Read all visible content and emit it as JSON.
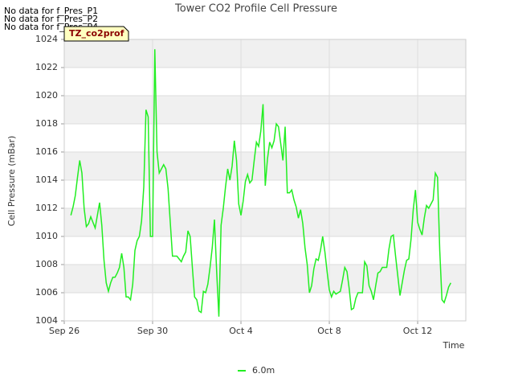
{
  "chart_data": {
    "type": "line",
    "title": "Tower CO2 Profile Cell Pressure",
    "notes": [
      "No data for f_Pres_P1",
      "No data for f_Pres_P2",
      "No data for f_Pres_P4"
    ],
    "tag": "TZ_co2prof",
    "xlabel": "Time",
    "ylabel": "Cell Pressure (mBar)",
    "xlim": [
      0,
      18.18
    ],
    "ylim": [
      1004,
      1024
    ],
    "xticks": [
      {
        "value": 0,
        "label": "Sep 26"
      },
      {
        "value": 4,
        "label": "Sep 30"
      },
      {
        "value": 8,
        "label": "Oct 4"
      },
      {
        "value": 12,
        "label": "Oct 8"
      },
      {
        "value": 16,
        "label": "Oct 12"
      }
    ],
    "yticks": [
      1004,
      1006,
      1008,
      1010,
      1012,
      1014,
      1016,
      1018,
      1020,
      1022,
      1024
    ],
    "grid": true,
    "legend": "bottom",
    "x": [
      0.3,
      0.4,
      0.5,
      0.6,
      0.7,
      0.8,
      0.9,
      1.0,
      1.1,
      1.2,
      1.3,
      1.4,
      1.5,
      1.6,
      1.7,
      1.8,
      1.9,
      2.0,
      2.1,
      2.2,
      2.3,
      2.4,
      2.5,
      2.6,
      2.7,
      2.8,
      2.9,
      3.0,
      3.1,
      3.2,
      3.3,
      3.4,
      3.5,
      3.6,
      3.7,
      3.8,
      3.9,
      4.0,
      4.1,
      4.2,
      4.3,
      4.4,
      4.5,
      4.6,
      4.7,
      4.8,
      4.9,
      5.0,
      5.1,
      5.2,
      5.3,
      5.4,
      5.5,
      5.6,
      5.7,
      5.8,
      5.9,
      6.0,
      6.1,
      6.2,
      6.3,
      6.4,
      6.5,
      6.6,
      6.7,
      6.8,
      6.9,
      7.0,
      7.1,
      7.2,
      7.3,
      7.4,
      7.5,
      7.6,
      7.7,
      7.8,
      7.9,
      8.0,
      8.1,
      8.2,
      8.3,
      8.4,
      8.5,
      8.6,
      8.7,
      8.8,
      8.9,
      9.0,
      9.1,
      9.2,
      9.3,
      9.4,
      9.5,
      9.6,
      9.7,
      9.8,
      9.9,
      10.0,
      10.1,
      10.2,
      10.3,
      10.4,
      10.5,
      10.6,
      10.7,
      10.8,
      10.9,
      11.0,
      11.1,
      11.2,
      11.3,
      11.4,
      11.5,
      11.6,
      11.7,
      11.8,
      11.9,
      12.0,
      12.1,
      12.2,
      12.3,
      12.4,
      12.5,
      12.6,
      12.7,
      12.8,
      12.9,
      13.0,
      13.1,
      13.2,
      13.3,
      13.4,
      13.5,
      13.6,
      13.7,
      13.8,
      13.9,
      14.0,
      14.1,
      14.2,
      14.3,
      14.4,
      14.5,
      14.6,
      14.7,
      14.8,
      14.9,
      15.0,
      15.1,
      15.2,
      15.3,
      15.4,
      15.5,
      15.6,
      15.7,
      15.8,
      15.9,
      16.0,
      16.1,
      16.2,
      16.3,
      16.4,
      16.5,
      16.6,
      16.7,
      16.8,
      16.9,
      17.0,
      17.1,
      17.2,
      17.3,
      17.4,
      17.5
    ],
    "series": [
      {
        "name": "6.0m",
        "color": "#22ee22",
        "values": [
          1011.5,
          1012.1,
          1012.9,
          1014.2,
          1015.4,
          1014.5,
          1012,
          1010.7,
          1010.9,
          1011.4,
          1011,
          1010.6,
          1011.5,
          1012.4,
          1010.8,
          1008.3,
          1006.7,
          1006.1,
          1006.7,
          1007.1,
          1007.1,
          1007.4,
          1007.8,
          1008.8,
          1007.8,
          1005.7,
          1005.7,
          1005.5,
          1006.6,
          1009,
          1009.7,
          1010,
          1011.1,
          1013.5,
          1019,
          1018.5,
          1010,
          1010,
          1023.3,
          1016,
          1014.5,
          1014.8,
          1015.1,
          1014.8,
          1013.4,
          1011,
          1008.6,
          1008.6,
          1008.6,
          1008.4,
          1008.2,
          1008.6,
          1008.9,
          1010.4,
          1010,
          1007.8,
          1005.7,
          1005.5,
          1004.7,
          1004.6,
          1006.1,
          1006,
          1006.6,
          1007.8,
          1009.2,
          1011.2,
          1007.5,
          1004.3,
          1010.8,
          1012,
          1013.5,
          1014.8,
          1014,
          1015,
          1016.8,
          1015.4,
          1012.3,
          1011.5,
          1012.5,
          1013.9,
          1014.4,
          1013.8,
          1014,
          1015.4,
          1016.7,
          1016.4,
          1017.5,
          1019.4,
          1013.6,
          1015.5,
          1016.7,
          1016.3,
          1016.8,
          1018,
          1017.8,
          1016.6,
          1015.4,
          1017.8,
          1013.1,
          1013.1,
          1013.3,
          1012.6,
          1012.1,
          1011.3,
          1011.9,
          1010.9,
          1009.2,
          1008,
          1006,
          1006.5,
          1007.7,
          1008.4,
          1008.3,
          1009,
          1010,
          1008.9,
          1007.5,
          1006.2,
          1005.7,
          1006.1,
          1005.9,
          1006,
          1006.1,
          1006.9,
          1007.8,
          1007.5,
          1006.3,
          1004.8,
          1004.9,
          1005.6,
          1006,
          1006,
          1006,
          1008.2,
          1007.9,
          1006.5,
          1006.1,
          1005.5,
          1006.5,
          1007.4,
          1007.5,
          1007.8,
          1007.8,
          1007.8,
          1009.1,
          1010,
          1010.1,
          1008.6,
          1007.2,
          1005.8,
          1006.7,
          1007.6,
          1008.3,
          1008.4,
          1009.8,
          1011.9,
          1013.3,
          1011,
          1010.5,
          1010.1,
          1011.3,
          1012.2,
          1012,
          1012.3,
          1012.6,
          1014.5,
          1014.2,
          1009,
          1005.5,
          1005.3,
          1005.8,
          1006.4,
          1006.7
        ]
      }
    ]
  }
}
